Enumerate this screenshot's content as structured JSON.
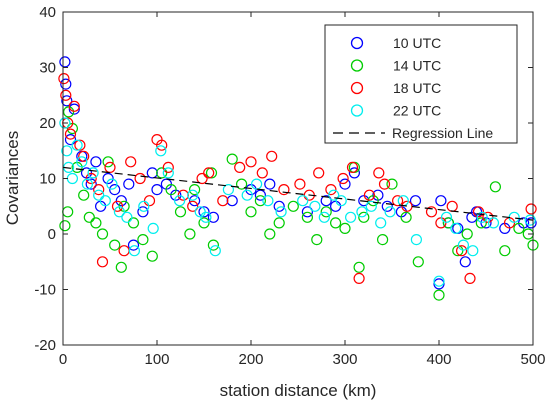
{
  "chart_data": {
    "type": "scatter",
    "title": "",
    "xlabel": "station distance (km)",
    "ylabel": "Covariances",
    "xlim": [
      0,
      500
    ],
    "ylim": [
      -20,
      40
    ],
    "xticks": [
      0,
      100,
      200,
      300,
      400,
      500
    ],
    "yticks": [
      -20,
      -10,
      0,
      10,
      20,
      30,
      40
    ],
    "grid": false,
    "legend_position": "top-right",
    "marker": "open-circle",
    "series": [
      {
        "name": "10 UTC",
        "color": "#0000ff",
        "points": [
          [
            2,
            31
          ],
          [
            3,
            27
          ],
          [
            4,
            24
          ],
          [
            8,
            17
          ],
          [
            12,
            22.5
          ],
          [
            20,
            14
          ],
          [
            25,
            11
          ],
          [
            30,
            9
          ],
          [
            35,
            13
          ],
          [
            40,
            5
          ],
          [
            48,
            10
          ],
          [
            55,
            8
          ],
          [
            62,
            6
          ],
          [
            70,
            9
          ],
          [
            75,
            -2
          ],
          [
            85,
            4
          ],
          [
            95,
            11
          ],
          [
            100,
            8
          ],
          [
            110,
            9
          ],
          [
            120,
            7
          ],
          [
            140,
            6
          ],
          [
            150,
            4
          ],
          [
            160,
            3
          ],
          [
            180,
            6
          ],
          [
            200,
            8
          ],
          [
            210,
            7
          ],
          [
            220,
            9
          ],
          [
            230,
            5
          ],
          [
            260,
            4
          ],
          [
            280,
            6
          ],
          [
            290,
            5
          ],
          [
            300,
            9
          ],
          [
            310,
            11
          ],
          [
            320,
            6
          ],
          [
            335,
            7
          ],
          [
            345,
            5
          ],
          [
            360,
            4
          ],
          [
            375,
            6
          ],
          [
            400,
            -9
          ],
          [
            402,
            6
          ],
          [
            410,
            2
          ],
          [
            420,
            1
          ],
          [
            428,
            -5
          ],
          [
            435,
            3
          ],
          [
            440,
            4
          ],
          [
            450,
            2
          ],
          [
            470,
            1
          ],
          [
            490,
            2
          ],
          [
            498,
            2
          ]
        ]
      },
      {
        "name": "14 UTC",
        "color": "#00cc00",
        "points": [
          [
            2,
            1.5
          ],
          [
            5,
            4
          ],
          [
            6,
            22
          ],
          [
            10,
            19
          ],
          [
            15,
            12
          ],
          [
            22,
            7
          ],
          [
            28,
            3
          ],
          [
            35,
            2
          ],
          [
            42,
            0
          ],
          [
            48,
            13
          ],
          [
            55,
            -2
          ],
          [
            62,
            -6
          ],
          [
            65,
            5
          ],
          [
            75,
            2
          ],
          [
            85,
            -1
          ],
          [
            95,
            -4
          ],
          [
            105,
            11
          ],
          [
            115,
            8
          ],
          [
            125,
            4
          ],
          [
            135,
            0
          ],
          [
            140,
            8
          ],
          [
            150,
            2
          ],
          [
            158,
            11
          ],
          [
            160,
            -2
          ],
          [
            180,
            13.5
          ],
          [
            190,
            9
          ],
          [
            200,
            4
          ],
          [
            210,
            6
          ],
          [
            220,
            0
          ],
          [
            230,
            2
          ],
          [
            245,
            5
          ],
          [
            260,
            3
          ],
          [
            270,
            -1
          ],
          [
            280,
            4
          ],
          [
            290,
            2
          ],
          [
            300,
            1
          ],
          [
            310,
            12
          ],
          [
            315,
            -6
          ],
          [
            320,
            3
          ],
          [
            330,
            6
          ],
          [
            340,
            -1
          ],
          [
            350,
            9
          ],
          [
            365,
            3
          ],
          [
            378,
            -5
          ],
          [
            400,
            -11
          ],
          [
            410,
            2
          ],
          [
            420,
            -3
          ],
          [
            430,
            0
          ],
          [
            445,
            2
          ],
          [
            460,
            8.5
          ],
          [
            470,
            -3
          ],
          [
            485,
            1
          ],
          [
            495,
            0
          ],
          [
            500,
            -2
          ]
        ]
      },
      {
        "name": "18 UTC",
        "color": "#ff0000",
        "points": [
          [
            1,
            28
          ],
          [
            3,
            25
          ],
          [
            5,
            20
          ],
          [
            8,
            18
          ],
          [
            12,
            23
          ],
          [
            18,
            16
          ],
          [
            22,
            14
          ],
          [
            30,
            10
          ],
          [
            38,
            8
          ],
          [
            42,
            -5
          ],
          [
            50,
            12
          ],
          [
            58,
            5
          ],
          [
            65,
            -3
          ],
          [
            72,
            13
          ],
          [
            82,
            10
          ],
          [
            92,
            6
          ],
          [
            100,
            17
          ],
          [
            105,
            16
          ],
          [
            112,
            12
          ],
          [
            128,
            7
          ],
          [
            138,
            5
          ],
          [
            148,
            10
          ],
          [
            155,
            11
          ],
          [
            170,
            6
          ],
          [
            188,
            12
          ],
          [
            200,
            13
          ],
          [
            212,
            11
          ],
          [
            222,
            14
          ],
          [
            235,
            8
          ],
          [
            252,
            9
          ],
          [
            262,
            7
          ],
          [
            272,
            11
          ],
          [
            285,
            8
          ],
          [
            298,
            10
          ],
          [
            308,
            12
          ],
          [
            315,
            -8
          ],
          [
            326,
            7
          ],
          [
            336,
            11
          ],
          [
            342,
            9
          ],
          [
            356,
            6
          ],
          [
            366,
            5
          ],
          [
            392,
            4
          ],
          [
            402,
            2
          ],
          [
            414,
            5
          ],
          [
            424,
            -3
          ],
          [
            433,
            -8
          ],
          [
            442,
            4
          ],
          [
            452,
            3
          ],
          [
            475,
            2
          ],
          [
            498,
            4.5
          ]
        ]
      },
      {
        "name": "22 UTC",
        "color": "#00eeee",
        "points": [
          [
            2,
            20
          ],
          [
            4,
            15
          ],
          [
            6,
            12
          ],
          [
            10,
            10
          ],
          [
            15,
            16
          ],
          [
            20,
            13
          ],
          [
            26,
            9
          ],
          [
            32,
            11
          ],
          [
            38,
            7
          ],
          [
            45,
            6
          ],
          [
            52,
            9
          ],
          [
            60,
            4
          ],
          [
            68,
            3
          ],
          [
            76,
            -3
          ],
          [
            86,
            5
          ],
          [
            96,
            1
          ],
          [
            104,
            15
          ],
          [
            112,
            11
          ],
          [
            124,
            6
          ],
          [
            138,
            7
          ],
          [
            146,
            4
          ],
          [
            152,
            3
          ],
          [
            162,
            -3
          ],
          [
            176,
            8
          ],
          [
            196,
            7
          ],
          [
            206,
            9
          ],
          [
            218,
            6
          ],
          [
            232,
            4
          ],
          [
            255,
            6
          ],
          [
            268,
            5
          ],
          [
            278,
            3
          ],
          [
            288,
            7
          ],
          [
            296,
            6
          ],
          [
            306,
            3
          ],
          [
            318,
            4
          ],
          [
            328,
            5
          ],
          [
            338,
            2
          ],
          [
            348,
            4
          ],
          [
            362,
            6
          ],
          [
            376,
            -1
          ],
          [
            400,
            -8.5
          ],
          [
            408,
            3
          ],
          [
            418,
            1
          ],
          [
            426,
            -2
          ],
          [
            436,
            -3
          ],
          [
            446,
            3
          ],
          [
            458,
            2
          ],
          [
            480,
            3
          ],
          [
            497,
            2.5
          ]
        ]
      }
    ],
    "regression_line": {
      "name": "Regression Line",
      "color": "#000000",
      "style": "dashed",
      "points": [
        [
          0,
          12
        ],
        [
          500,
          2.5
        ]
      ]
    }
  }
}
